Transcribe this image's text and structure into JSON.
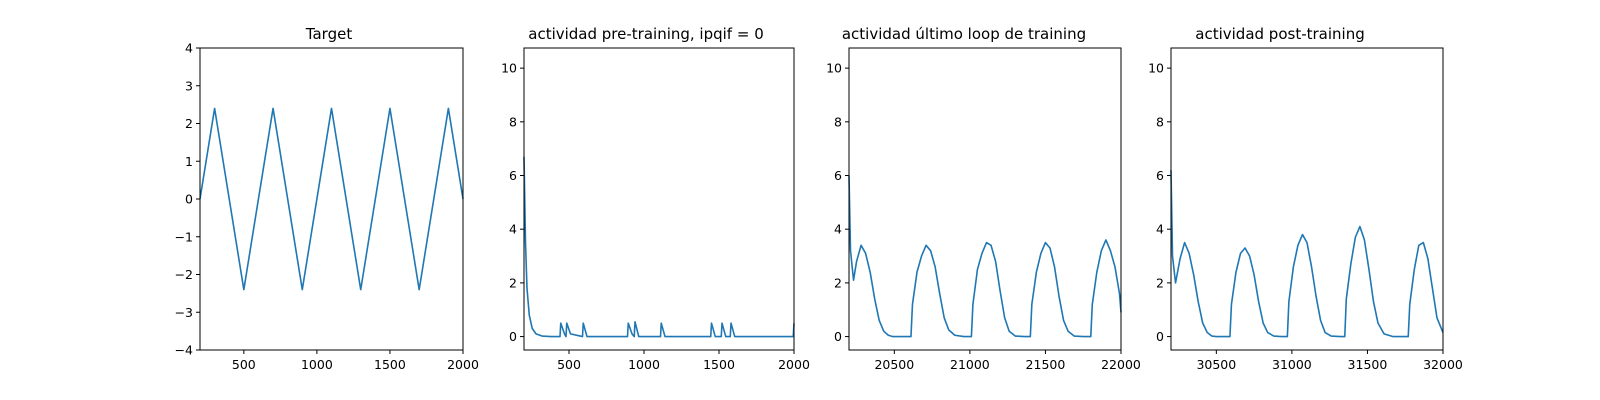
{
  "chart_data": [
    {
      "type": "line",
      "title": "Target",
      "xlim": [
        200,
        2000
      ],
      "ylim": [
        -4,
        4
      ],
      "xticks": [
        500,
        1000,
        1500,
        2000
      ],
      "yticks": [
        -4,
        -3,
        -2,
        -1,
        0,
        1,
        2,
        3,
        4
      ],
      "color": "#1f77b4",
      "series": [
        {
          "x": [
            200,
            300,
            400,
            500,
            600,
            700,
            800,
            900,
            1000,
            1100,
            1200,
            1300,
            1400,
            1500,
            1600,
            1700,
            1800,
            1900,
            2000
          ],
          "y": [
            0,
            2.4,
            0,
            -2.4,
            0,
            2.4,
            0,
            -2.4,
            0,
            2.4,
            0,
            -2.4,
            0,
            2.4,
            0,
            -2.4,
            0,
            2.4,
            0
          ]
        }
      ]
    },
    {
      "type": "line",
      "title": "actividad pre-training, ipqif = 0",
      "xlim": [
        200,
        2000
      ],
      "ylim": [
        -0.5,
        10.75
      ],
      "xticks": [
        500,
        1000,
        1500,
        2000
      ],
      "yticks": [
        0,
        2,
        4,
        6,
        8,
        10
      ],
      "color": "#1f77b4",
      "series": [
        {
          "x": [
            200,
            210,
            220,
            235,
            255,
            280,
            320,
            380,
            440,
            445,
            470,
            480,
            485,
            510,
            590,
            595,
            620,
            890,
            895,
            920,
            935,
            940,
            965,
            1110,
            1115,
            1140,
            1445,
            1450,
            1475,
            1515,
            1520,
            1545,
            1575,
            1580,
            1605,
            1995,
            2000
          ],
          "y": [
            6.7,
            3.5,
            1.8,
            0.8,
            0.3,
            0.1,
            0.02,
            0,
            0,
            0.5,
            0.1,
            0,
            0.5,
            0.1,
            0,
            0.5,
            0,
            0,
            0.5,
            0.1,
            0,
            0.55,
            0,
            0,
            0.5,
            0,
            0,
            0.5,
            0,
            0,
            0.5,
            0,
            0,
            0.5,
            0,
            0,
            0.5
          ]
        }
      ]
    },
    {
      "type": "line",
      "title": "actividad último loop de training",
      "xlim": [
        20200,
        22000
      ],
      "ylim": [
        -0.5,
        10.75
      ],
      "xticks": [
        20500,
        21000,
        21500,
        22000
      ],
      "yticks": [
        0,
        2,
        4,
        6,
        8,
        10
      ],
      "color": "#1f77b4",
      "series": [
        {
          "x": [
            20200,
            20210,
            20230,
            20250,
            20280,
            20310,
            20340,
            20370,
            20400,
            20430,
            20460,
            20490,
            20520,
            20560,
            20610,
            20620,
            20650,
            20680,
            20710,
            20740,
            20770,
            20800,
            20830,
            20860,
            20900,
            20960,
            21010,
            21020,
            21050,
            21080,
            21110,
            21140,
            21170,
            21200,
            21230,
            21260,
            21300,
            21360,
            21400,
            21410,
            21440,
            21470,
            21500,
            21530,
            21560,
            21590,
            21620,
            21650,
            21690,
            21750,
            21800,
            21810,
            21840,
            21870,
            21900,
            21930,
            21960,
            21990,
            22000
          ],
          "y": [
            6.0,
            3.2,
            2.1,
            2.8,
            3.4,
            3.1,
            2.4,
            1.4,
            0.6,
            0.2,
            0.05,
            0,
            0,
            0,
            0,
            1.2,
            2.4,
            3.0,
            3.4,
            3.2,
            2.6,
            1.6,
            0.7,
            0.25,
            0.05,
            0,
            0,
            1.2,
            2.5,
            3.1,
            3.5,
            3.4,
            2.8,
            1.7,
            0.7,
            0.2,
            0.02,
            0,
            0,
            1.2,
            2.4,
            3.1,
            3.5,
            3.3,
            2.6,
            1.5,
            0.6,
            0.2,
            0.02,
            0,
            0,
            1.2,
            2.4,
            3.2,
            3.6,
            3.2,
            2.6,
            1.6,
            0.9
          ]
        }
      ]
    },
    {
      "type": "line",
      "title": "actividad post-training",
      "xlim": [
        30200,
        32000
      ],
      "ylim": [
        -0.5,
        10.75
      ],
      "xticks": [
        30500,
        31000,
        31500,
        32000
      ],
      "yticks": [
        0,
        2,
        4,
        6,
        8,
        10
      ],
      "color": "#1f77b4",
      "series": [
        {
          "x": [
            30200,
            30210,
            30230,
            30260,
            30290,
            30320,
            30350,
            30380,
            30410,
            30440,
            30470,
            30500,
            30540,
            30590,
            30600,
            30630,
            30660,
            30690,
            30720,
            30750,
            30780,
            30810,
            30840,
            30880,
            30930,
            30970,
            30980,
            31010,
            31040,
            31070,
            31100,
            31130,
            31160,
            31190,
            31220,
            31260,
            31320,
            31350,
            31360,
            31390,
            31420,
            31450,
            31480,
            31510,
            31540,
            31570,
            31610,
            31670,
            31770,
            31780,
            31810,
            31840,
            31870,
            31900,
            31930,
            31960,
            32000
          ],
          "y": [
            6.2,
            3.0,
            2.0,
            2.9,
            3.5,
            3.1,
            2.3,
            1.3,
            0.5,
            0.15,
            0.02,
            0,
            0,
            0,
            1.2,
            2.4,
            3.1,
            3.3,
            3.0,
            2.3,
            1.3,
            0.5,
            0.15,
            0.02,
            0,
            0,
            1.3,
            2.6,
            3.4,
            3.8,
            3.5,
            2.6,
            1.5,
            0.6,
            0.15,
            0.02,
            0,
            0,
            1.4,
            2.7,
            3.7,
            4.1,
            3.6,
            2.5,
            1.3,
            0.5,
            0.1,
            0,
            0,
            1.2,
            2.5,
            3.4,
            3.5,
            2.9,
            1.8,
            0.7,
            0.15
          ]
        }
      ]
    }
  ]
}
